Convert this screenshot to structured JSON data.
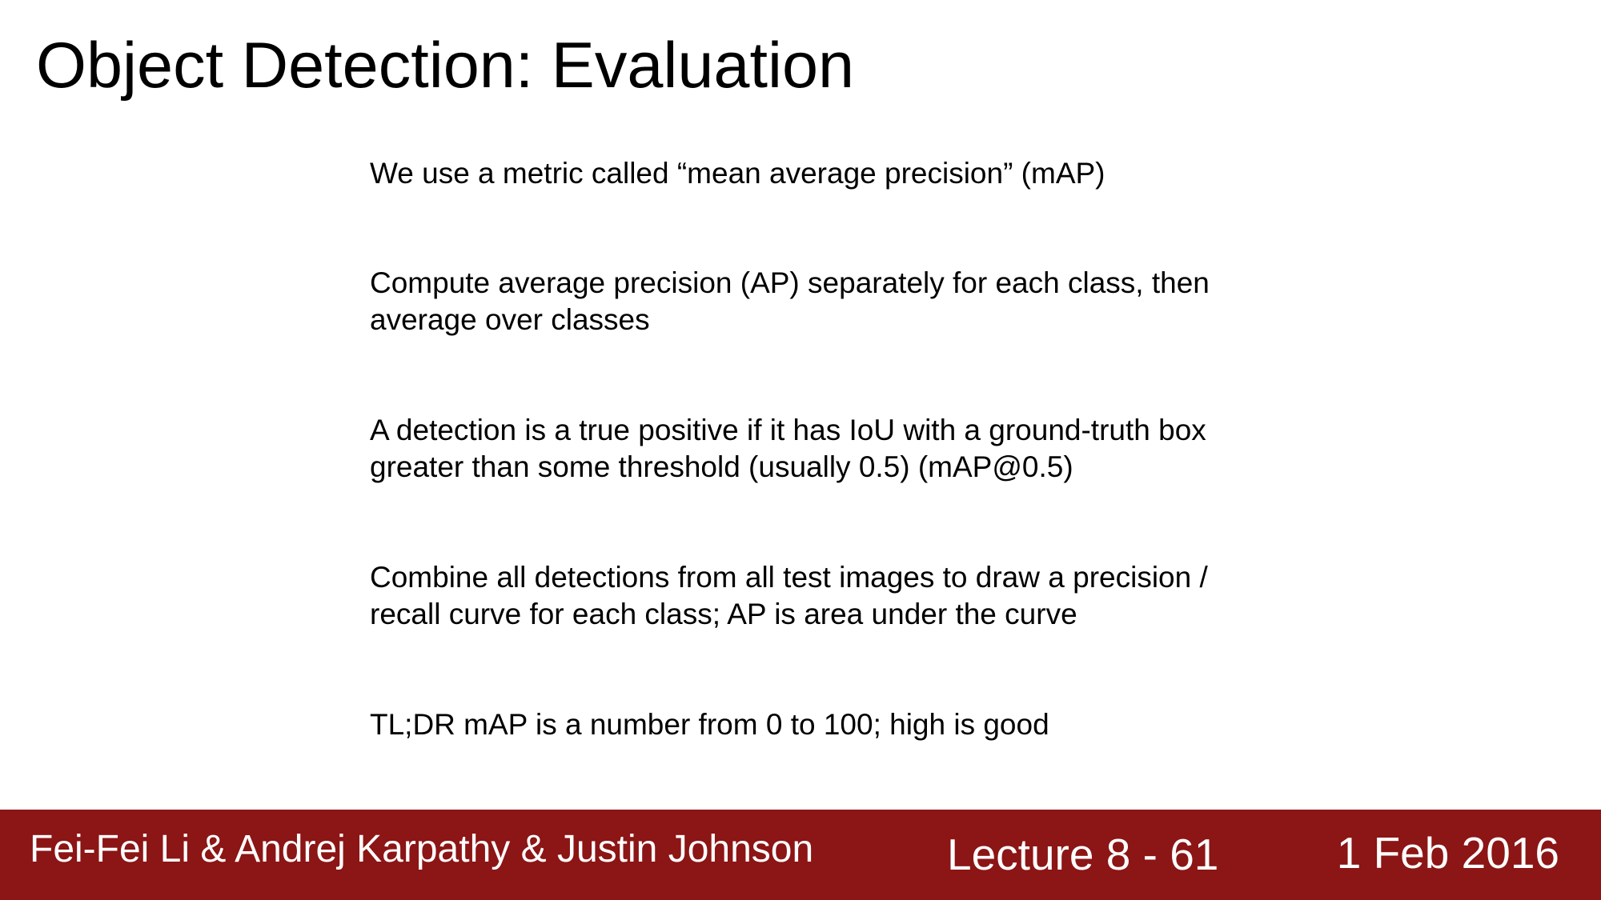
{
  "slide": {
    "title": "Object Detection: Evaluation",
    "bullets": [
      {
        "lines": [
          "We use a metric called “mean average precision” (mAP)"
        ]
      },
      {
        "lines": [
          "Compute average precision (AP) separately for each class, then",
          "average over classes"
        ]
      },
      {
        "lines": [
          "A detection is a true positive if it has IoU with a ground-truth box",
          "greater than some threshold (usually 0.5) (mAP@0.5)"
        ]
      },
      {
        "lines": [
          "Combine all detections from all test images to draw a precision /",
          "recall curve for each class; AP is area under the curve"
        ]
      },
      {
        "lines": [
          "TL;DR mAP is a number from 0 to 100; high is good"
        ]
      }
    ]
  },
  "footer": {
    "authors": "Fei-Fei Li & Andrej Karpathy & Justin Johnson",
    "lecture": "Lecture 8 - 61",
    "date": "1 Feb 2016",
    "background_color": "#8c1515",
    "text_color": "#ffffff"
  }
}
